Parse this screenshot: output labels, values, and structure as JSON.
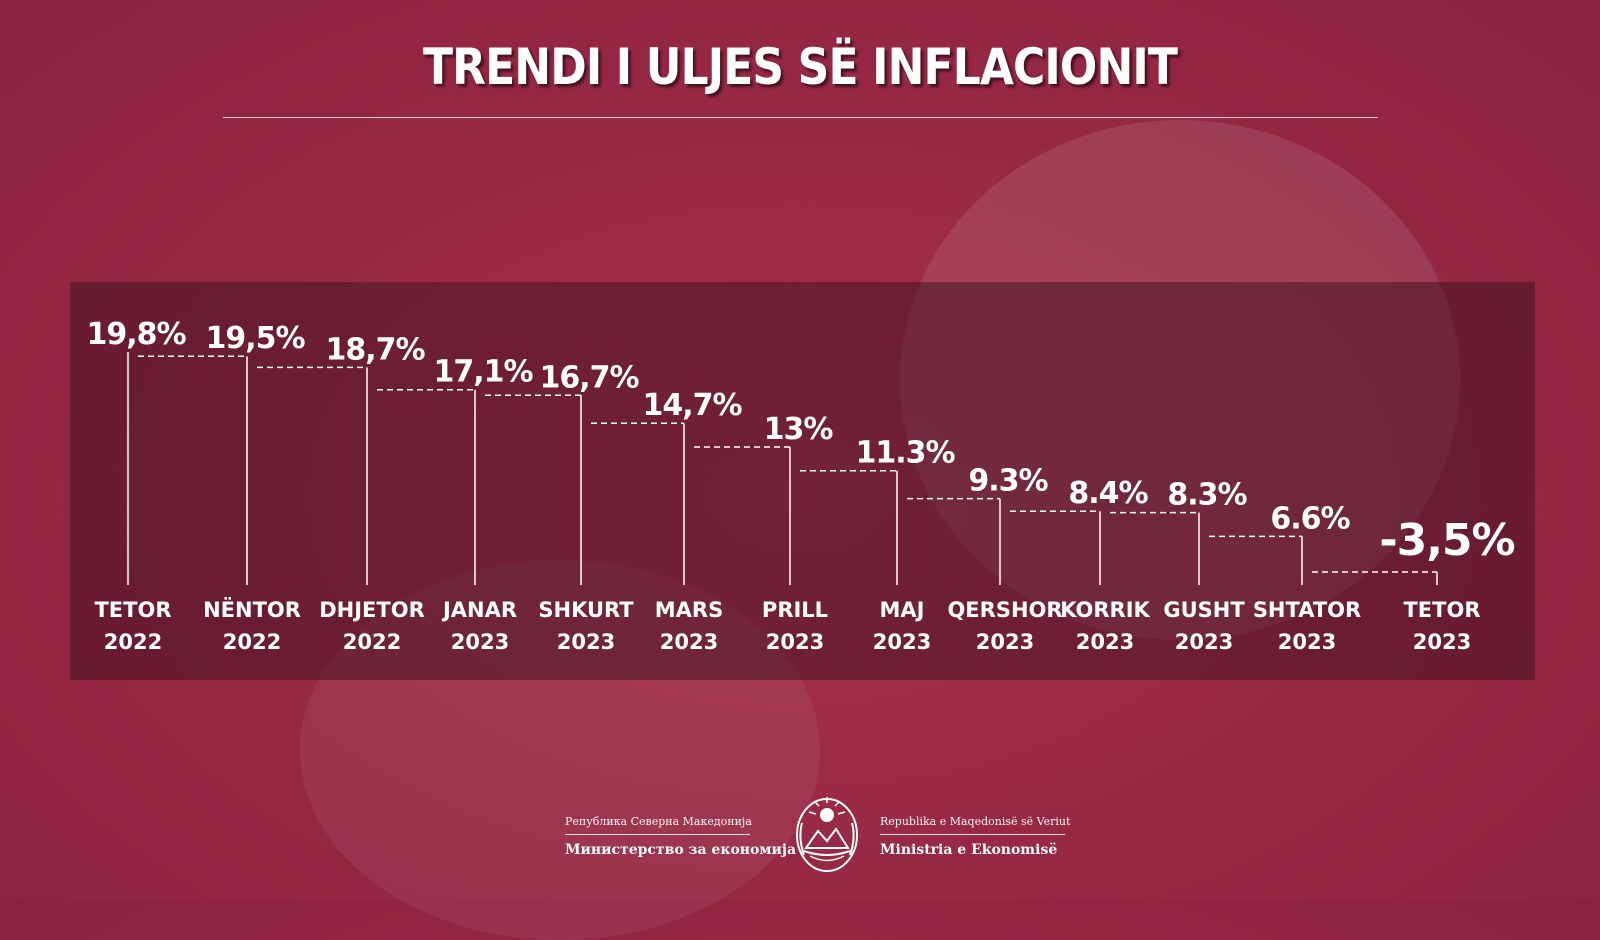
{
  "title": "TRENDI I ULJES SË INFLACIONIT",
  "colors": {
    "background": "#9a2a46",
    "panel": "#5a1a2e",
    "text": "#ffffff"
  },
  "footer": {
    "left_small": "Република Северна Македонија",
    "left_big": "Министерство за економија",
    "right_small": "Republika e Maqedonisë së Veriut",
    "right_big": "Ministria e Ekonomisë",
    "emblem_icon": "state-emblem-icon"
  },
  "chart_data": {
    "type": "line",
    "style": "step-with-dashed-connectors",
    "title": "TRENDI I ULJES SË INFLACIONIT",
    "xlabel": "",
    "ylabel": "",
    "grid": false,
    "legend": "none",
    "categories": [
      [
        "TETOR",
        "2022"
      ],
      [
        "NËNTOR",
        "2022"
      ],
      [
        "DHJETOR",
        "2022"
      ],
      [
        "JANAR",
        "2023"
      ],
      [
        "SHKURT",
        "2023"
      ],
      [
        "MARS",
        "2023"
      ],
      [
        "PRILL",
        "2023"
      ],
      [
        "MAJ",
        "2023"
      ],
      [
        "QERSHOR",
        "2023"
      ],
      [
        "KORRIK",
        "2023"
      ],
      [
        "GUSHT",
        "2023"
      ],
      [
        "SHTATOR",
        "2023"
      ],
      [
        "TETOR",
        "2023"
      ]
    ],
    "values": [
      19.8,
      19.5,
      18.7,
      17.1,
      16.7,
      14.7,
      13,
      11.3,
      9.3,
      8.4,
      8.3,
      6.6,
      -3.5
    ],
    "value_labels": [
      "19,8%",
      "19,5%",
      "18,7%",
      "17,1%",
      "16,7%",
      "14,7%",
      "13%",
      "11.3%",
      "9.3%",
      "8.4%",
      "8.3%",
      "6.6%",
      "-3,5%"
    ]
  }
}
